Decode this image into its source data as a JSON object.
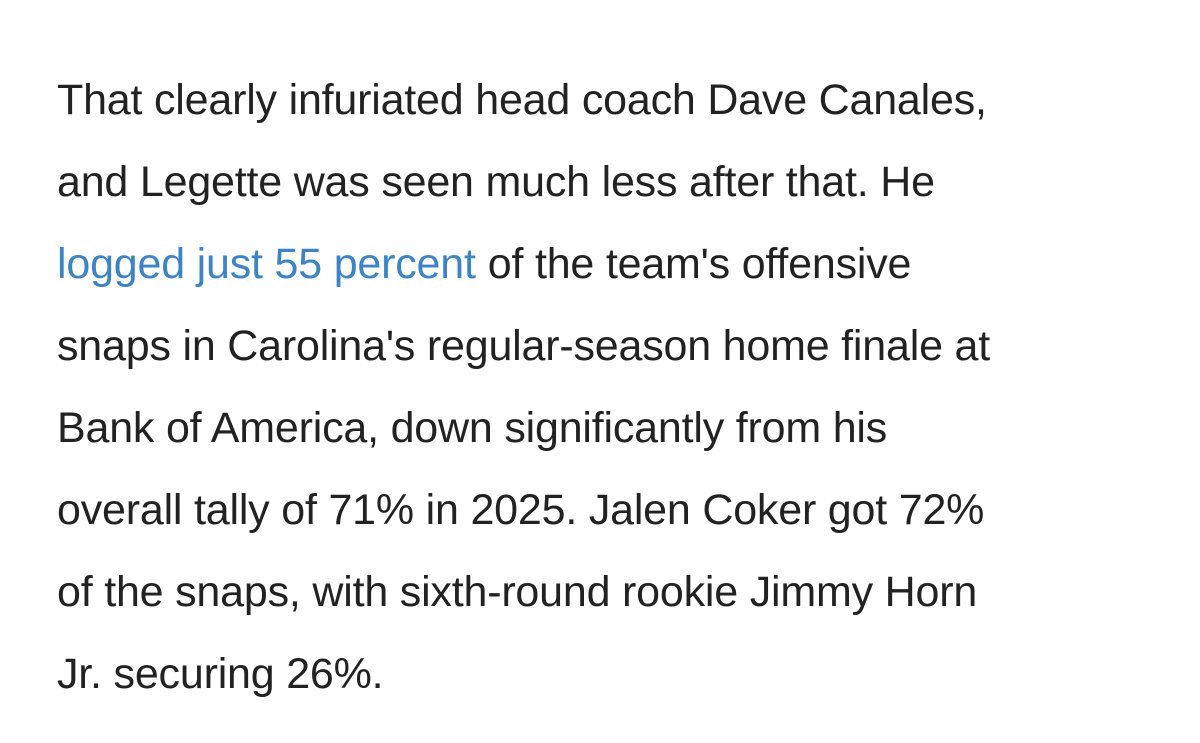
{
  "paragraph": {
    "lines": [
      "That clearly infuriated head coach Dave Canales,",
      "and Legette was seen much less after that. He",
      {
        "link": "logged just 55 percent",
        "text": "of the team's offensive"
      },
      "snaps in Carolina's regular-season home finale at",
      "Bank of America, down significantly from his",
      "overall tally of 71% in 2025. Jalen Coker got 72%",
      "of the snaps, with sixth-round rookie Jimmy Horn",
      "Jr. securing 26%."
    ]
  }
}
